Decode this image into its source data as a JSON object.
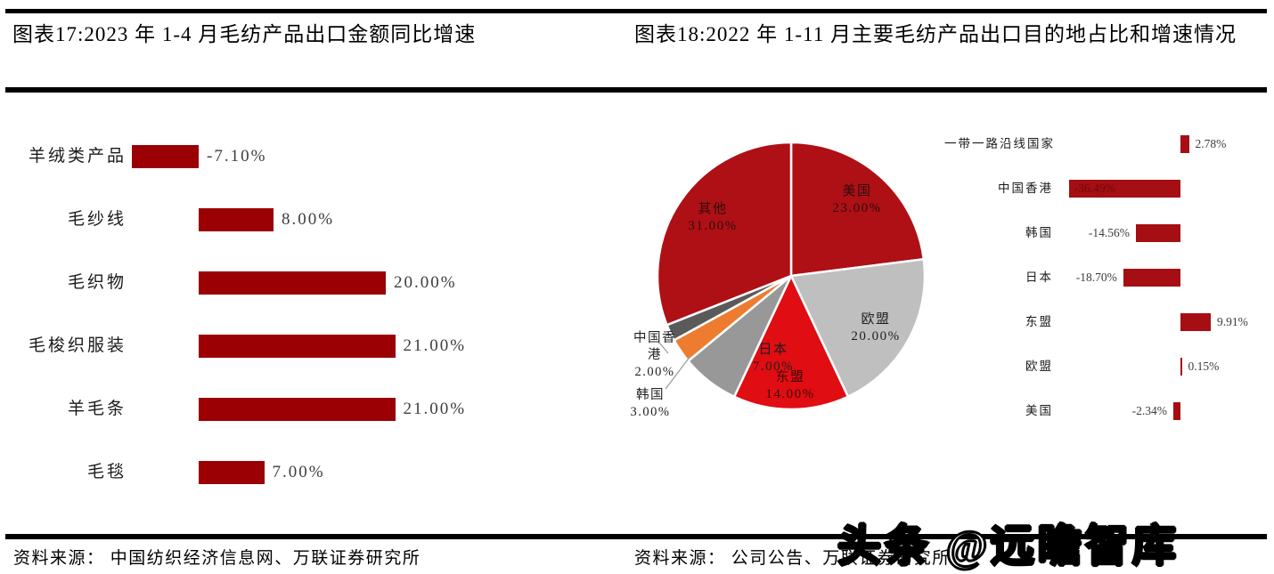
{
  "header": {
    "fig17_title": "图表17:2023 年 1-4 月毛纺产品出口金额同比增速",
    "fig18_title": "图表18:2022 年 1-11 月主要毛纺产品出口目的地占比和增速情况"
  },
  "sources": {
    "left": "资料来源： 中国纺织经济信息网、万联证券研究所",
    "right": "资料来源： 公司公告、万联证券研究所"
  },
  "watermark": "头条 @远瞻智库",
  "colors": {
    "rule": "#000000",
    "fig17_bar": "#9A0004",
    "fig18_bar": "#A50E13",
    "fig18_bar_inside_label": "#6E0A0C",
    "pie_dark_red": "#AF1015",
    "pie_light_gray": "#BFBFBF",
    "pie_bright_red": "#E00D12",
    "pie_mid_gray": "#989898",
    "pie_orange": "#EE7C30",
    "pie_dark_gray": "#5A5A5A",
    "value_text": "#3d3d3d",
    "category_text": "#1a1a1a"
  },
  "chart_data": [
    {
      "id": "fig17_bars",
      "type": "bar",
      "orientation": "horizontal",
      "title": "2023年1-4月毛纺产品出口金额同比增速",
      "categories": [
        "羊绒类产品",
        "毛纱线",
        "毛织物",
        "毛梭织服装",
        "羊毛条",
        "毛毯"
      ],
      "values": [
        -7.1,
        8.0,
        20.0,
        21.0,
        21.0,
        7.0
      ],
      "value_labels": [
        "-7.10%",
        "8.00%",
        "20.00%",
        "21.00%",
        "21.00%",
        "7.00%"
      ],
      "xlim": [
        -10,
        25
      ],
      "grid": false,
      "legend": "none",
      "bar_color": "#9A0004"
    },
    {
      "id": "fig18_pie",
      "type": "pie",
      "title": "2022年1-11月主要毛纺产品出口目的地占比",
      "categories": [
        "美国",
        "欧盟",
        "东盟",
        "日本",
        "韩国",
        "中国香港",
        "其他"
      ],
      "values": [
        23.0,
        20.0,
        14.0,
        7.0,
        3.0,
        2.0,
        31.0
      ],
      "value_labels": [
        "23.00%",
        "20.00%",
        "14.00%",
        "7.00%",
        "3.00%",
        "2.00%",
        "31.00%"
      ],
      "colors": [
        "#AF1015",
        "#BFBFBF",
        "#E00D12",
        "#989898",
        "#EE7C30",
        "#5A5A5A",
        "#AF1015"
      ],
      "start_angle_deg": 0,
      "direction": "clockwise",
      "outside_label_indexes": [
        4,
        5
      ]
    },
    {
      "id": "fig18_bars",
      "type": "bar",
      "orientation": "horizontal",
      "title": "2022年1-11月主要毛纺产品出口目的地增速",
      "categories": [
        "一带一路沿线国家",
        "中国香港",
        "韩国",
        "日本",
        "东盟",
        "欧盟",
        "美国"
      ],
      "values": [
        2.78,
        -36.49,
        -14.56,
        -18.7,
        9.91,
        0.15,
        -2.34
      ],
      "value_labels": [
        "2.78%",
        "-36.49%",
        "-14.56%",
        "-18.70%",
        "9.91%",
        "0.15%",
        "-2.34%"
      ],
      "xlim": [
        -40,
        12
      ],
      "grid": false,
      "legend": "none",
      "bar_color": "#A50E13",
      "inside_label_index": 1
    }
  ]
}
